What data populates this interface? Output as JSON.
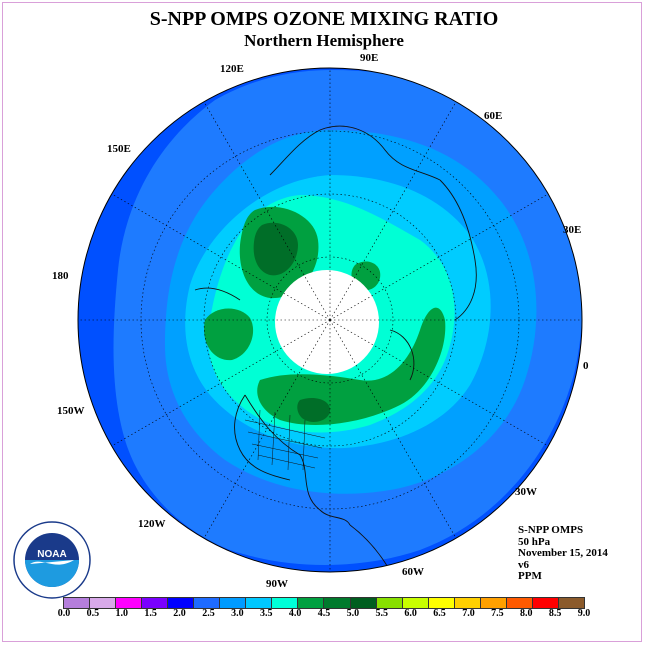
{
  "header": {
    "title": "S-NPP OMPS OZONE MIXING RATIO",
    "subtitle": "Northern Hemisphere"
  },
  "longitude_labels": [
    "90E",
    "60E",
    "30E",
    "0",
    "30W",
    "60W",
    "90W",
    "120W",
    "150W",
    "180",
    "150E",
    "120E"
  ],
  "info": {
    "instrument": "S-NPP OMPS",
    "pressure": "50 hPa",
    "date": "November 15, 2014",
    "version": "v6",
    "units": "PPM"
  },
  "logo": {
    "text": "NOAA",
    "ring_text": "NATIONAL OCEANIC AND ATMOSPHERIC ADMINISTRATION · U.S. DEPARTMENT OF COMMERCE"
  },
  "colorbar": {
    "labels": [
      "0.0",
      "0.5",
      "1.0",
      "1.5",
      "2.0",
      "2.5",
      "3.0",
      "3.5",
      "4.0",
      "4.5",
      "5.0",
      "5.5",
      "6.0",
      "6.5",
      "7.0",
      "7.5",
      "8.0",
      "8.5",
      "9.0"
    ],
    "colors": [
      "#b57edc",
      "#d8a9e9",
      "#ff00ff",
      "#7a00ff",
      "#0000ff",
      "#1e6bff",
      "#009bff",
      "#00c8ff",
      "#00ffd8",
      "#00a040",
      "#007a2c",
      "#005e1f",
      "#88e000",
      "#c8ff00",
      "#ffff00",
      "#ffd000",
      "#ffa000",
      "#ff5a00",
      "#ff0000",
      "#8b5a2b"
    ]
  }
}
